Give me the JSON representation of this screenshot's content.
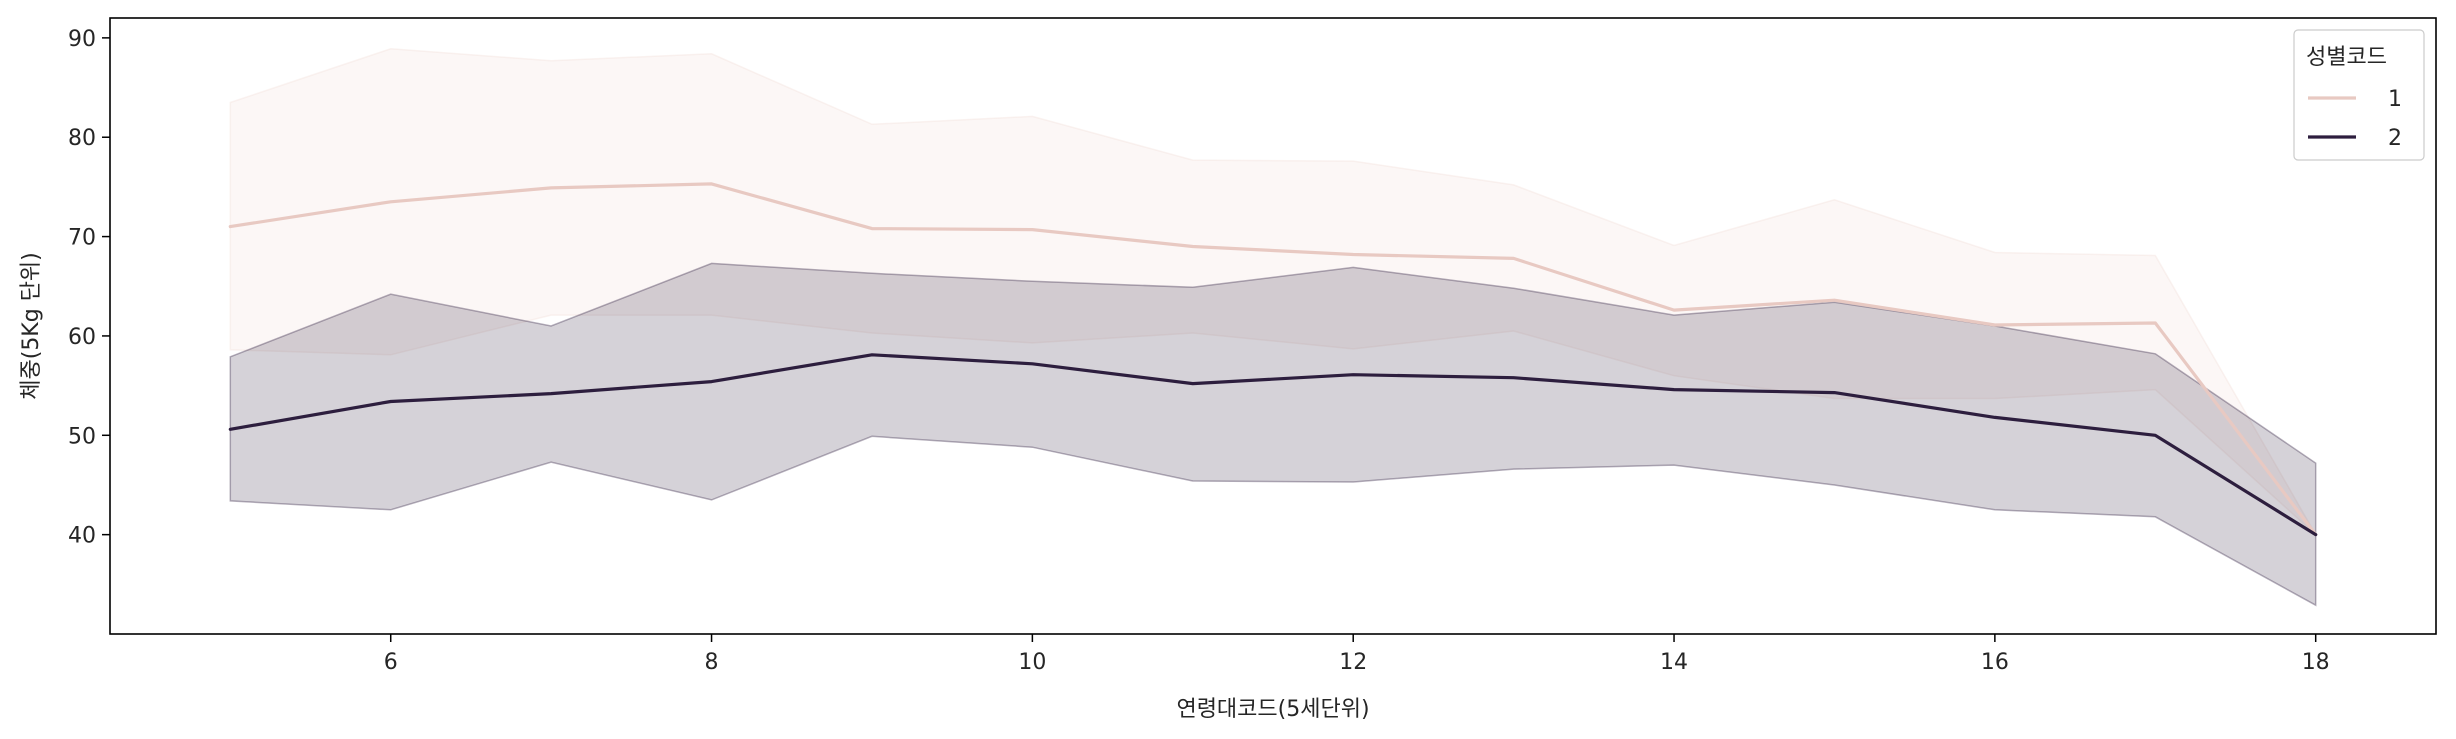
{
  "chart_data": {
    "type": "line",
    "xlabel": "연령대코드(5세단위)",
    "ylabel": "체중(5Kg 단위)",
    "xlim": [
      4.25,
      18.75
    ],
    "ylim": [
      30,
      92
    ],
    "xticks": [
      6,
      8,
      10,
      12,
      14,
      16,
      18
    ],
    "yticks": [
      40,
      50,
      60,
      70,
      80,
      90
    ],
    "grid": false,
    "legend": {
      "title": "성별코드",
      "position": "top-right"
    },
    "x": [
      5,
      6,
      7,
      8,
      9,
      10,
      11,
      12,
      13,
      14,
      15,
      16,
      17,
      18
    ],
    "series": [
      {
        "name": "1",
        "color": "#e8c9c2",
        "band_color": "#f0dcd6",
        "values": [
          71.0,
          73.5,
          74.9,
          75.3,
          70.8,
          70.7,
          69.0,
          68.2,
          67.8,
          62.6,
          63.6,
          61.1,
          61.3,
          40.0
        ],
        "upper": [
          83.5,
          88.9,
          87.7,
          88.4,
          81.3,
          82.1,
          77.7,
          77.6,
          75.2,
          69.1,
          73.7,
          68.4,
          68.1,
          40.0
        ],
        "lower": [
          58.6,
          58.1,
          62.1,
          62.1,
          60.3,
          59.3,
          60.3,
          58.7,
          60.5,
          56.0,
          53.7,
          53.7,
          54.6,
          40.0
        ]
      },
      {
        "name": "2",
        "color": "#2d1e3e",
        "band_color": "#2d1e3e",
        "values": [
          50.6,
          53.4,
          54.2,
          55.4,
          58.1,
          57.2,
          55.2,
          56.1,
          55.8,
          54.6,
          54.3,
          51.8,
          50.0,
          40.0
        ],
        "upper": [
          57.9,
          64.2,
          61.0,
          67.3,
          66.3,
          65.5,
          64.9,
          66.9,
          64.8,
          62.1,
          63.4,
          61.0,
          58.2,
          47.2
        ],
        "lower": [
          43.4,
          42.5,
          47.3,
          43.5,
          49.9,
          48.8,
          45.4,
          45.3,
          46.6,
          47.0,
          45.0,
          42.5,
          41.8,
          32.9
        ]
      }
    ]
  }
}
